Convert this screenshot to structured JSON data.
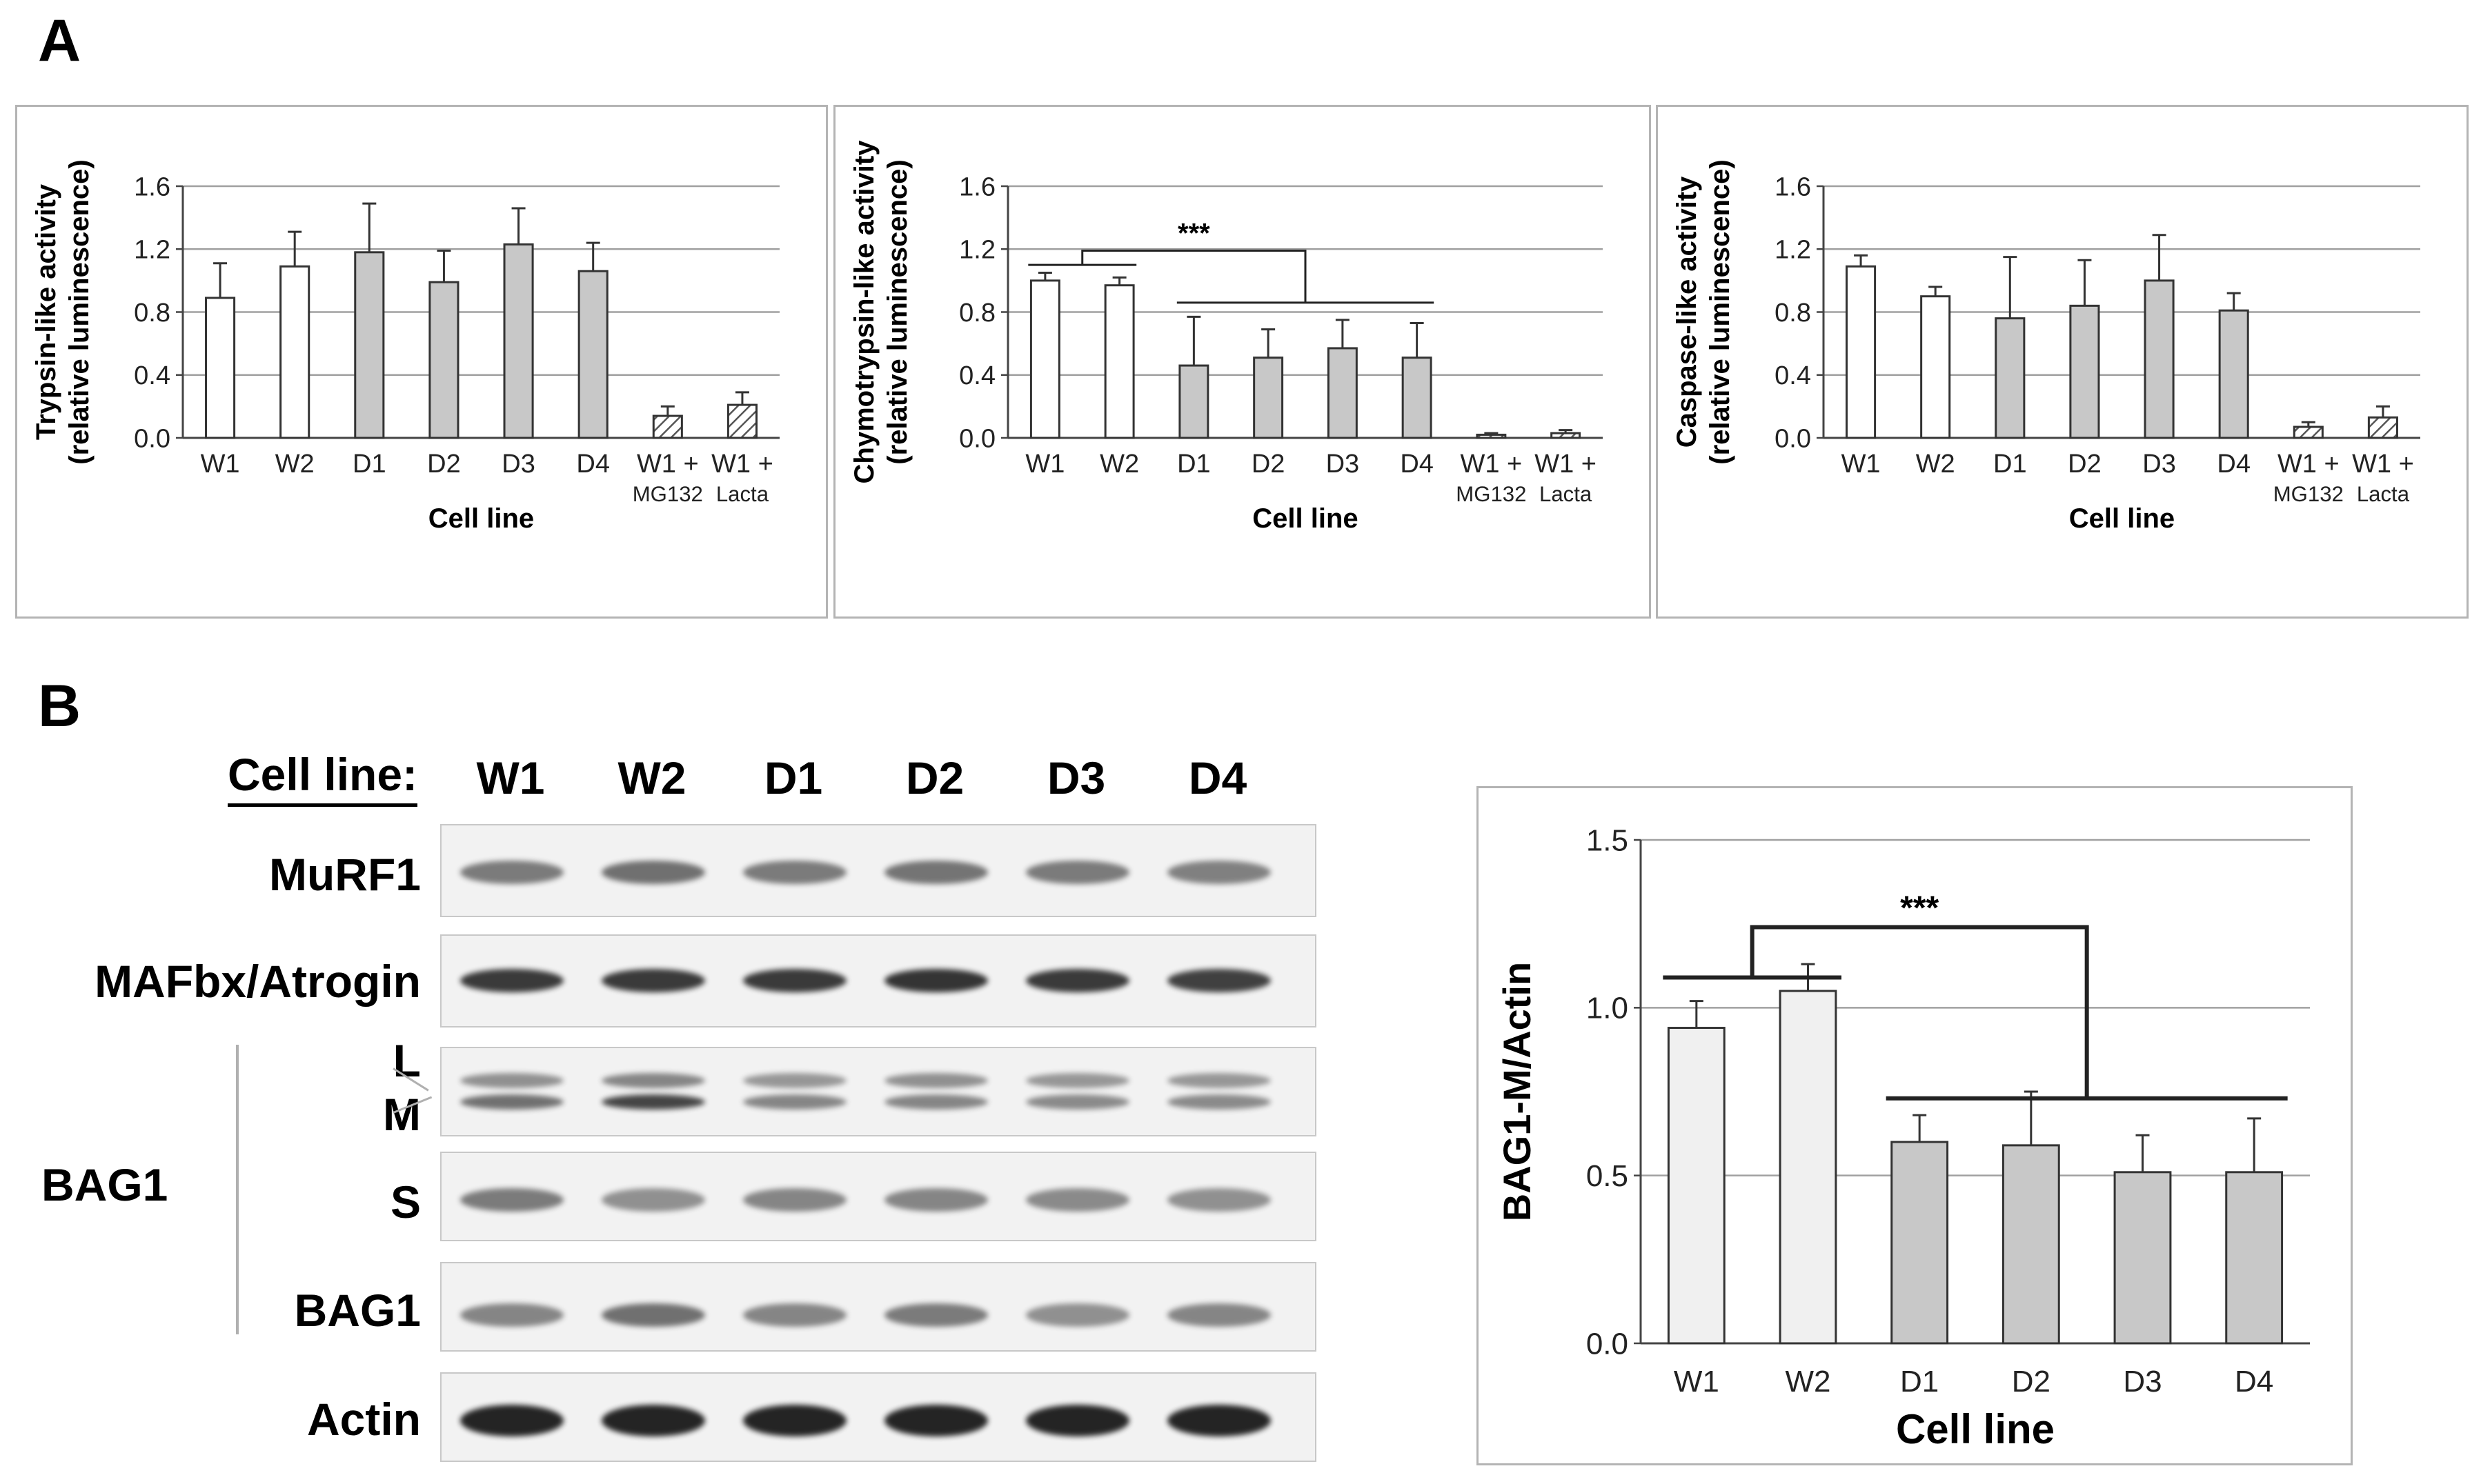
{
  "panel_a_letter": "A",
  "panel_b_letter": "B",
  "chart_data": [
    {
      "type": "bar",
      "ylabel_line1": "Trypsin-like activity",
      "ylabel_line2": "(relative luminescence)",
      "xlabel": "Cell line",
      "categories": [
        [
          "W1"
        ],
        [
          "W2"
        ],
        [
          "D1"
        ],
        [
          "D2"
        ],
        [
          "D3"
        ],
        [
          "D4"
        ],
        [
          "W1 +",
          "MG132"
        ],
        [
          "W1 +",
          "Lacta"
        ]
      ],
      "values": [
        0.89,
        1.09,
        1.18,
        0.99,
        1.23,
        1.06,
        0.14,
        0.21
      ],
      "errors": [
        0.22,
        0.22,
        0.31,
        0.2,
        0.23,
        0.18,
        0.06,
        0.08
      ],
      "fills": [
        "white",
        "white",
        "gray",
        "gray",
        "gray",
        "gray",
        "hatch",
        "hatch"
      ],
      "ylim": [
        0,
        1.6
      ],
      "yticks": [
        "0.0",
        "0.4",
        "0.8",
        "1.2",
        "1.6"
      ],
      "significance": null
    },
    {
      "type": "bar",
      "ylabel_line1": "Chymotrypsin-like activity",
      "ylabel_line2": "(relative luminescence)",
      "xlabel": "Cell line",
      "categories": [
        [
          "W1"
        ],
        [
          "W2"
        ],
        [
          "D1"
        ],
        [
          "D2"
        ],
        [
          "D3"
        ],
        [
          "D4"
        ],
        [
          "W1 +",
          "MG132"
        ],
        [
          "W1 +",
          "Lacta"
        ]
      ],
      "values": [
        1.0,
        0.97,
        0.46,
        0.51,
        0.57,
        0.51,
        0.02,
        0.03
      ],
      "errors": [
        0.05,
        0.05,
        0.31,
        0.18,
        0.18,
        0.22,
        0.01,
        0.02
      ],
      "fills": [
        "white",
        "white",
        "gray",
        "gray",
        "gray",
        "gray",
        "hatch",
        "hatch"
      ],
      "ylim": [
        0,
        1.6
      ],
      "yticks": [
        "0.0",
        "0.4",
        "0.8",
        "1.2",
        "1.6"
      ],
      "significance": {
        "label": "***",
        "group_a": [
          0,
          1
        ],
        "group_b": [
          2,
          5
        ],
        "level_a": 1.1,
        "level_b": 0.86,
        "top": 1.19
      }
    },
    {
      "type": "bar",
      "ylabel_line1": "Caspase-like activity",
      "ylabel_line2": "(relative luminescence)",
      "xlabel": "Cell line",
      "categories": [
        [
          "W1"
        ],
        [
          "W2"
        ],
        [
          "D1"
        ],
        [
          "D2"
        ],
        [
          "D3"
        ],
        [
          "D4"
        ],
        [
          "W1 +",
          "MG132"
        ],
        [
          "W1 +",
          "Lacta"
        ]
      ],
      "values": [
        1.09,
        0.9,
        0.76,
        0.84,
        1.0,
        0.81,
        0.07,
        0.13
      ],
      "errors": [
        0.07,
        0.06,
        0.39,
        0.29,
        0.29,
        0.11,
        0.03,
        0.07
      ],
      "fills": [
        "white",
        "white",
        "gray",
        "gray",
        "gray",
        "gray",
        "hatch",
        "hatch"
      ],
      "ylim": [
        0,
        1.6
      ],
      "yticks": [
        "0.0",
        "0.4",
        "0.8",
        "1.2",
        "1.6"
      ],
      "significance": null
    },
    {
      "type": "bar",
      "ylabel_line1": "BAG1-M/Actin",
      "ylabel_line2": "",
      "xlabel": "Cell line",
      "categories": [
        [
          "W1"
        ],
        [
          "W2"
        ],
        [
          "D1"
        ],
        [
          "D2"
        ],
        [
          "D3"
        ],
        [
          "D4"
        ]
      ],
      "values": [
        0.94,
        1.05,
        0.6,
        0.59,
        0.51,
        0.51
      ],
      "errors": [
        0.08,
        0.08,
        0.08,
        0.16,
        0.11,
        0.16
      ],
      "fills": [
        "white",
        "white",
        "gray",
        "gray",
        "gray",
        "gray"
      ],
      "ylim": [
        0,
        1.5
      ],
      "yticks": [
        "0.0",
        "0.5",
        "1.0",
        "1.5"
      ],
      "significance": {
        "label": "***",
        "group_a": [
          0,
          1
        ],
        "group_b": [
          2,
          5
        ],
        "level_a": 1.09,
        "level_b": 0.73,
        "top": 1.24
      }
    }
  ],
  "blot": {
    "header": "Cell line:",
    "lanes": [
      "W1",
      "W2",
      "D1",
      "D2",
      "D3",
      "D4"
    ],
    "rows": [
      {
        "label": "MuRF1",
        "intensity": [
          0.55,
          0.6,
          0.55,
          0.58,
          0.55,
          0.52
        ]
      },
      {
        "label": "MAFbx/Atrogin",
        "intensity": [
          0.85,
          0.85,
          0.85,
          0.88,
          0.85,
          0.82
        ]
      },
      {
        "label": "L",
        "intensity": [
          0.45,
          0.5,
          0.42,
          0.45,
          0.42,
          0.42
        ]
      },
      {
        "label": "M",
        "intensity": [
          0.6,
          0.8,
          0.5,
          0.5,
          0.48,
          0.48
        ]
      },
      {
        "label": "S",
        "intensity": [
          0.55,
          0.45,
          0.5,
          0.5,
          0.48,
          0.45
        ]
      },
      {
        "label": "BAG1",
        "intensity": [
          0.5,
          0.6,
          0.5,
          0.55,
          0.45,
          0.5
        ]
      },
      {
        "label": "Actin",
        "intensity": [
          0.95,
          0.95,
          0.95,
          0.95,
          0.95,
          0.95
        ]
      }
    ],
    "group_label": "BAG1"
  },
  "colors": {
    "gray_bar": "#c8c8c8",
    "white_bar": "#ffffff",
    "light_bar": "#f0f0f0",
    "band": "#1a1a1a"
  }
}
